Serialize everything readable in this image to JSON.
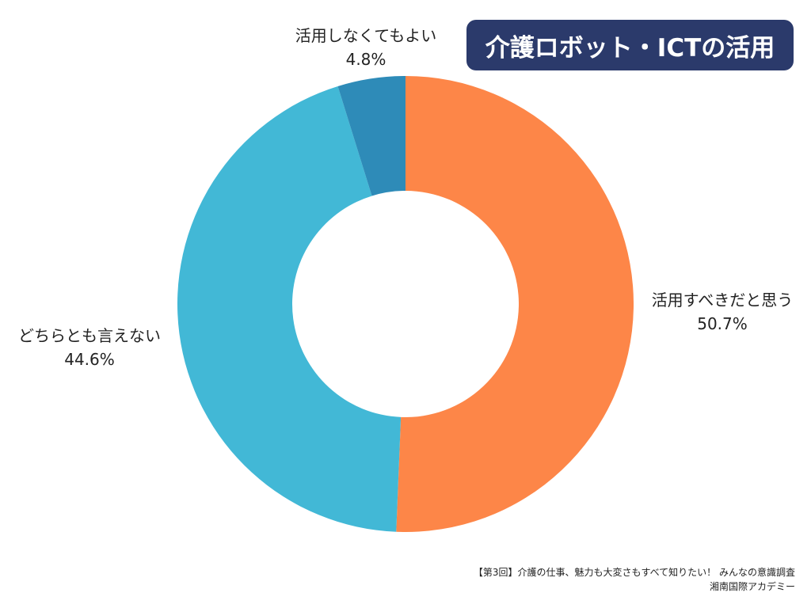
{
  "chart_data": {
    "type": "pie",
    "title": "介護ロボット・ICTの活用",
    "donut": true,
    "slices": [
      {
        "label": "活用すべきだと思う",
        "value": 50.7,
        "value_text": "50.7%",
        "color": "#fd8648"
      },
      {
        "label": "どちらとも言えない",
        "value": 44.6,
        "value_text": "44.6%",
        "color": "#42b8d6"
      },
      {
        "label": "活用しなくてもよい",
        "value": 4.8,
        "value_text": "4.8%",
        "color": "#2e8bb8"
      }
    ],
    "start": "top",
    "direction": "clockwise"
  },
  "source": {
    "line1": "【第3回】介護の仕事、魅力も大変さもすべて知りたい！ みんなの意識調査",
    "line2": "湘南国際アカデミー"
  }
}
